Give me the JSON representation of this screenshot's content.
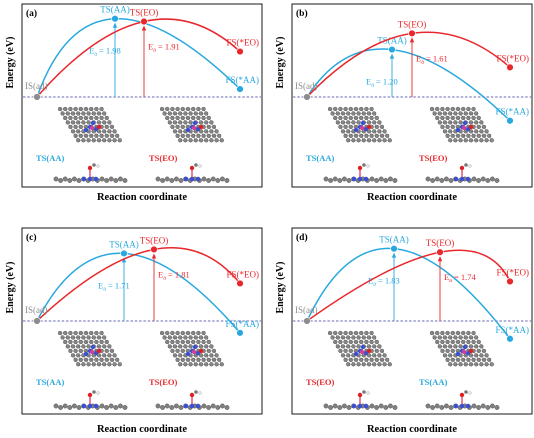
{
  "colors": {
    "aa": "#29a8df",
    "eo": "#e8282c",
    "is": "#8c8c8c",
    "baseline": "#3a3aa0",
    "frame": "#000000"
  },
  "chart_data": [
    {
      "panel": "(a)",
      "type": "line",
      "xlabel": "Reaction coordinate",
      "ylabel": "Energy (eV)",
      "initial_state": {
        "label": "IS(ad)",
        "energy": 0
      },
      "series": [
        {
          "name": "AA",
          "ts_label": "TS(AA)",
          "fs_label": "FS(*AA)",
          "ts_energy": 1.98,
          "fs_energy": 0.2,
          "ea_label": "E",
          "ea_text": " = 1.98"
        },
        {
          "name": "EO",
          "ts_label": "TS(EO)",
          "fs_label": "FS(*EO)",
          "ts_energy": 1.91,
          "fs_energy": 1.15,
          "ea_label": "E",
          "ea_text": " = 1.91"
        }
      ],
      "structure_labels": [
        "TS(AA)",
        "TS(EO)"
      ]
    },
    {
      "panel": "(b)",
      "type": "line",
      "xlabel": "Reaction coordinate",
      "ylabel": "Energy (eV)",
      "initial_state": {
        "label": "IS(ad)",
        "energy": 0
      },
      "series": [
        {
          "name": "AA",
          "ts_label": "TS(AA)",
          "fs_label": "FS(*AA)",
          "ts_energy": 1.2,
          "fs_energy": -0.6,
          "ea_label": "E",
          "ea_text": " = 1.20"
        },
        {
          "name": "EO",
          "ts_label": "TS(EO)",
          "fs_label": "FS(*EO)",
          "ts_energy": 1.61,
          "fs_energy": 0.75,
          "ea_label": "E",
          "ea_text": " = 1.61"
        }
      ],
      "structure_labels": [
        "TS(AA)",
        "TS(EO)"
      ]
    },
    {
      "panel": "(c)",
      "type": "line",
      "xlabel": "Reaction coordinate",
      "ylabel": "Energy (eV)",
      "initial_state": {
        "label": "IS(ad)",
        "energy": 0
      },
      "series": [
        {
          "name": "AA",
          "ts_label": "TS(AA)",
          "fs_label": "FS(*AA)",
          "ts_energy": 1.71,
          "fs_energy": -0.3,
          "ea_label": "E",
          "ea_text": " = 1.71"
        },
        {
          "name": "EO",
          "ts_label": "TS(EO)",
          "fs_label": "FS(*EO)",
          "ts_energy": 1.81,
          "fs_energy": 0.95,
          "ea_label": "E",
          "ea_text": " = 1.81"
        }
      ],
      "structure_labels": [
        "TS(AA)",
        "TS(EO)"
      ]
    },
    {
      "panel": "(d)",
      "type": "line",
      "xlabel": "Reaction coordinate",
      "ylabel": "Energy (eV)",
      "initial_state": {
        "label": "IS(ad)",
        "energy": 0
      },
      "series": [
        {
          "name": "AA",
          "ts_label": "TS(AA)",
          "fs_label": "FS(*AA)",
          "ts_energy": 1.83,
          "fs_energy": -0.45,
          "ea_label": "E",
          "ea_text": " = 1.83"
        },
        {
          "name": "EO",
          "ts_label": "TS(EO)",
          "fs_label": "FS(*EO)",
          "ts_energy": 1.74,
          "fs_energy": 1.0,
          "ea_label": "E",
          "ea_text": " = 1.74"
        }
      ],
      "structure_labels": [
        "TS(EO)",
        "TS(AA)"
      ]
    }
  ]
}
